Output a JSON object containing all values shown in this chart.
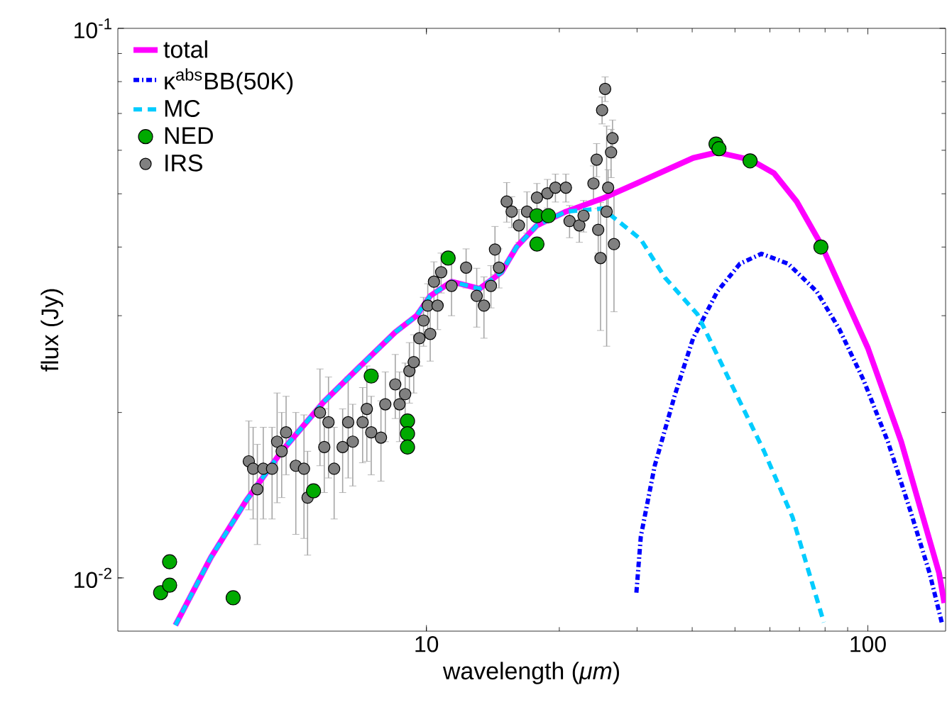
{
  "chart_data": {
    "type": "line",
    "xlabel": "wavelength (*μm*)",
    "ylabel": "flux (Jy)",
    "log": "xy",
    "xlim": [
      2,
      150
    ],
    "ylim": [
      0.008,
      0.1
    ],
    "xticks": [
      10,
      100
    ],
    "yticks": [
      {
        "value": 0.01,
        "label": "10$^{-2}$"
      },
      {
        "value": 0.1,
        "label": "10$^{-1}$"
      }
    ],
    "legend": "top left",
    "series": [
      {
        "name": "total",
        "line_style": "solid",
        "marker": "none",
        "color": "#ff00ff",
        "x": [
          2.7,
          3.25,
          3.9,
          4.7,
          5.85,
          7.05,
          8.5,
          9.5,
          10.2,
          11.4,
          13.2,
          14.8,
          16,
          17.8,
          20.7,
          25,
          29.9,
          40.2,
          45.6,
          54.1,
          61.3,
          69,
          78.3,
          100,
          119,
          145,
          149
        ],
        "values": [
          0.0082,
          0.0109,
          0.0138,
          0.017,
          0.0209,
          0.0242,
          0.028,
          0.03,
          0.0326,
          0.0346,
          0.0336,
          0.036,
          0.04,
          0.0438,
          0.0464,
          0.049,
          0.0522,
          0.0581,
          0.0595,
          0.0577,
          0.0545,
          0.0484,
          0.0405,
          0.0262,
          0.0177,
          0.0102,
          0.009
        ]
      },
      {
        "name": "κ$^{abs}$BB(50K)",
        "line_style": "dashdot",
        "marker": "none",
        "color": "#0000ff",
        "x": [
          29.9,
          30.6,
          32.9,
          36.6,
          40.2,
          45.6,
          51.3,
          57.4,
          66,
          76.6,
          86.1,
          97.8,
          111,
          125,
          138,
          147
        ],
        "values": [
          0.0094,
          0.0119,
          0.016,
          0.0216,
          0.0273,
          0.0332,
          0.0373,
          0.0389,
          0.0373,
          0.0332,
          0.0284,
          0.0229,
          0.0177,
          0.0132,
          0.0102,
          0.0083
        ]
      },
      {
        "name": "MC",
        "line_style": "dashed",
        "marker": "none",
        "color": "#00ccff",
        "x": [
          2.7,
          3.25,
          3.9,
          4.7,
          5.85,
          7.05,
          8.5,
          9.5,
          10.2,
          11.4,
          13.2,
          14.8,
          16,
          17.8,
          20.7,
          25,
          27.2,
          30.6,
          34.7,
          41.1,
          49.1,
          58.2,
          67.5,
          79.5
        ],
        "values": [
          0.0082,
          0.0109,
          0.0138,
          0.017,
          0.0209,
          0.0242,
          0.028,
          0.03,
          0.0326,
          0.0346,
          0.0336,
          0.036,
          0.04,
          0.0438,
          0.0464,
          0.047,
          0.0446,
          0.0413,
          0.0352,
          0.0302,
          0.0225,
          0.017,
          0.0129,
          0.0083
        ]
      },
      {
        "name": "NED",
        "type": "scatter",
        "marker": "circle",
        "color": "#00aa00",
        "x": [
          2.5,
          2.62,
          2.62,
          3.65,
          5.55,
          7.5,
          9.06,
          9.06,
          9.06,
          11.2,
          17.8,
          17.8,
          18.9,
          45.3,
          46,
          54.1,
          78.3
        ],
        "values": [
          0.0094,
          0.0107,
          0.0097,
          0.0092,
          0.0144,
          0.0233,
          0.0193,
          0.0183,
          0.0173,
          0.0382,
          0.0405,
          0.0456,
          0.0456,
          0.0616,
          0.0604,
          0.0574,
          0.04
        ]
      },
      {
        "name": "IRS",
        "type": "scatter",
        "marker": "circle",
        "color": "#808080",
        "x": [
          3.96,
          4.05,
          4.27,
          4.14,
          4.59,
          4.7,
          4.47,
          4.81,
          5.06,
          5.28,
          5.38,
          5.74,
          5.87,
          6.0,
          6.18,
          6.46,
          6.65,
          6.81,
          7.17,
          7.33,
          7.5,
          7.89,
          8.07,
          8.5,
          8.69,
          8.95,
          9.15,
          9.36,
          9.64,
          9.85,
          10.07,
          10.4,
          10.8,
          10.2,
          10.6,
          11.4,
          12.3,
          13.0,
          13.5,
          14.0,
          14.3,
          14.6,
          15.2,
          15.6,
          16.2,
          16.9,
          17.8,
          18.8,
          19.6,
          20.7,
          21.1,
          22.2,
          22.7,
          23.9,
          24.3,
          25.0,
          25.4,
          26.2,
          26.4,
          25.6,
          24.8,
          26.6,
          25.8,
          24.5
        ],
        "values": [
          0.0163,
          0.0158,
          0.0158,
          0.0145,
          0.0177,
          0.017,
          0.0158,
          0.0184,
          0.016,
          0.0158,
          0.014,
          0.02,
          0.0173,
          0.0192,
          0.0158,
          0.0173,
          0.0192,
          0.0177,
          0.0192,
          0.0203,
          0.0184,
          0.018,
          0.0207,
          0.0225,
          0.0207,
          0.0216,
          0.0238,
          0.0247,
          0.0273,
          0.0294,
          0.0313,
          0.0346,
          0.036,
          0.0278,
          0.0313,
          0.034,
          0.0367,
          0.0326,
          0.0313,
          0.034,
          0.0396,
          0.0367,
          0.0484,
          0.0464,
          0.0438,
          0.0464,
          0.0492,
          0.0501,
          0.0513,
          0.0513,
          0.0446,
          0.0438,
          0.0456,
          0.0522,
          0.0577,
          0.071,
          0.0776,
          0.0595,
          0.0631,
          0.0464,
          0.0382,
          0.0405,
          0.0513,
          0.043
        ],
        "errors": [
          0.003,
          0.003,
          0.003,
          0.003,
          0.004,
          0.003,
          0.003,
          0.003,
          0.004,
          0.004,
          0.003,
          0.004,
          0.003,
          0.004,
          0.003,
          0.003,
          0.004,
          0.003,
          0.003,
          0.004,
          0.003,
          0.003,
          0.003,
          0.003,
          0.003,
          0.003,
          0.003,
          0.003,
          0.003,
          0.003,
          0.003,
          0.003,
          0.003,
          0.003,
          0.003,
          0.004,
          0.003,
          0.004,
          0.004,
          0.003,
          0.004,
          0.003,
          0.004,
          0.003,
          0.003,
          0.004,
          0.003,
          0.003,
          0.003,
          0.003,
          0.003,
          0.003,
          0.003,
          0.004,
          0.004,
          0.004,
          0.004,
          0.006,
          0.005,
          0.02,
          0.01,
          0.01,
          0.004,
          0.004
        ]
      }
    ]
  }
}
